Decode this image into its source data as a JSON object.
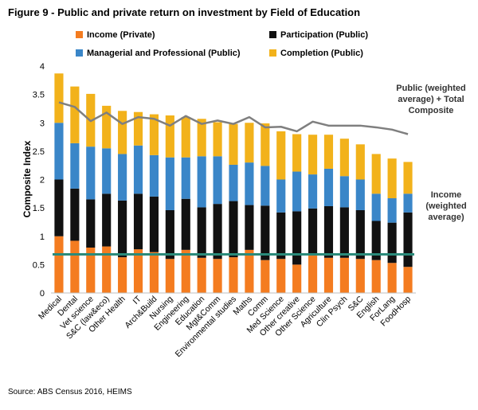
{
  "chart_data": {
    "type": "bar",
    "title": "Figure 9 - Public and private return on investment by Field of Education",
    "ylabel": "Composite Index",
    "xlabel": "",
    "ylim": [
      0,
      4
    ],
    "yticks": [
      "0",
      "0.5",
      "1",
      "1.5",
      "2",
      "2.5",
      "3",
      "3.5",
      "4"
    ],
    "stacked": true,
    "categories": [
      "Medical",
      "Dental",
      "Vet science",
      "S&C (law&eco)",
      "Other Health",
      "IT",
      "Arch&Build",
      "Nursing",
      "Engineering",
      "Education",
      "Mgt&Comm",
      "Environmental studies",
      "Maths",
      "Comm",
      "Med Science",
      "Other creative",
      "Other Science",
      "Agriculture",
      "Clin Psych",
      "S&C",
      "English",
      "ForLang",
      "FoodHosp"
    ],
    "series": [
      {
        "name": "Income (Private)",
        "color": "#f47c20",
        "values": [
          1.0,
          0.92,
          0.8,
          0.82,
          0.63,
          0.77,
          0.72,
          0.6,
          0.76,
          0.62,
          0.6,
          0.63,
          0.76,
          0.58,
          0.6,
          0.5,
          0.66,
          0.62,
          0.62,
          0.6,
          0.58,
          0.53,
          0.46
        ]
      },
      {
        "name": "Participation (Public)",
        "color": "#111111",
        "values": [
          1.0,
          0.92,
          0.85,
          0.93,
          1.0,
          0.98,
          0.98,
          0.86,
          0.9,
          0.89,
          0.97,
          0.99,
          0.79,
          0.96,
          0.82,
          0.94,
          0.83,
          0.91,
          0.89,
          0.86,
          0.69,
          0.71,
          0.96
        ]
      },
      {
        "name": "Managerial and Professional (Public)",
        "color": "#3a86c8",
        "values": [
          1.0,
          0.8,
          0.93,
          0.8,
          0.82,
          0.85,
          0.73,
          0.93,
          0.73,
          0.9,
          0.84,
          0.64,
          0.75,
          0.7,
          0.58,
          0.7,
          0.6,
          0.66,
          0.55,
          0.54,
          0.48,
          0.43,
          0.33
        ]
      },
      {
        "name": "Completion (Public)",
        "color": "#f2b21b",
        "values": [
          0.87,
          1.0,
          0.93,
          0.75,
          0.76,
          0.59,
          0.72,
          0.74,
          0.71,
          0.66,
          0.6,
          0.72,
          0.7,
          0.75,
          0.85,
          0.66,
          0.7,
          0.6,
          0.66,
          0.62,
          0.7,
          0.7,
          0.56
        ]
      }
    ],
    "lines": [
      {
        "name": "Public (weighted average) + Total Composite",
        "color": "#7f7f7f",
        "values": [
          3.36,
          3.28,
          3.03,
          3.18,
          2.98,
          3.1,
          3.07,
          2.95,
          3.12,
          2.98,
          3.04,
          2.98,
          3.1,
          2.92,
          2.93,
          2.85,
          3.02,
          2.95,
          2.95,
          2.95,
          2.92,
          2.88,
          2.8
        ]
      },
      {
        "name": "Income (weighted average)",
        "color": "#2a8a7a",
        "values": [
          0.68,
          0.68,
          0.68,
          0.68,
          0.68,
          0.68,
          0.68,
          0.68,
          0.68,
          0.68,
          0.68,
          0.68,
          0.68,
          0.68,
          0.68,
          0.68,
          0.68,
          0.68,
          0.68,
          0.68,
          0.68,
          0.68,
          0.68
        ]
      }
    ],
    "legend": "top",
    "grid": false
  },
  "legend_items": [
    "Income (Private)",
    "Participation (Public)",
    "Managerial and Professional (Public)",
    "Completion (Public)"
  ],
  "annotations": {
    "public_avg": [
      "Public (weighted",
      "average) + Total",
      "Composite"
    ],
    "income_avg": [
      "Income",
      "(weighted",
      "average)"
    ]
  },
  "source": "Source: ABS Census 2016, HEIMS"
}
